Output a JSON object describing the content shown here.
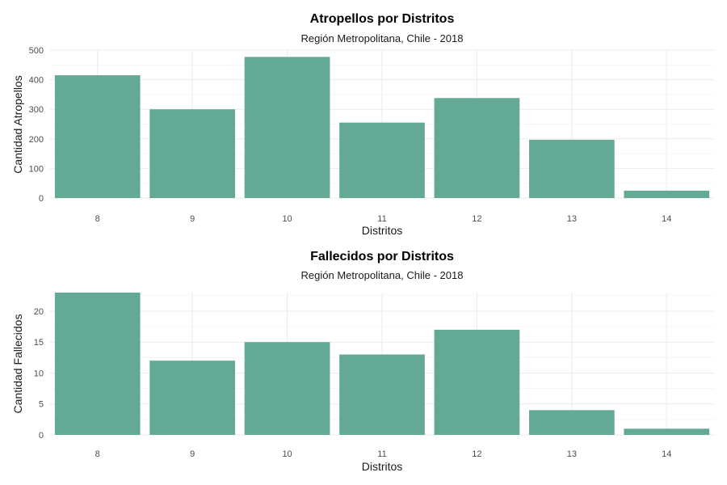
{
  "chart_data": [
    {
      "type": "bar",
      "title": "Atropellos por Distritos",
      "subtitle": "Región Metropolitana, Chile - 2018",
      "xlabel": "Distritos",
      "ylabel": "Cantidad Atropellos",
      "categories": [
        "8",
        "9",
        "10",
        "11",
        "12",
        "13",
        "14"
      ],
      "values": [
        415,
        300,
        477,
        255,
        338,
        197,
        25
      ],
      "ylim": [
        0,
        500
      ],
      "yticks": [
        0,
        100,
        200,
        300,
        400,
        500
      ],
      "grid": true,
      "bar_color": "#63a995"
    },
    {
      "type": "bar",
      "title": "Fallecidos por Distritos",
      "subtitle": "Región Metropolitana, Chile - 2018",
      "xlabel": "Distritos",
      "ylabel": "Cantidad Fallecidos",
      "categories": [
        "8",
        "9",
        "10",
        "11",
        "12",
        "13",
        "14"
      ],
      "values": [
        23,
        12,
        15,
        13,
        17,
        4,
        1
      ],
      "ylim": [
        0,
        23
      ],
      "yticks": [
        0,
        5,
        10,
        15,
        20
      ],
      "grid": true,
      "bar_color": "#63a995"
    }
  ]
}
